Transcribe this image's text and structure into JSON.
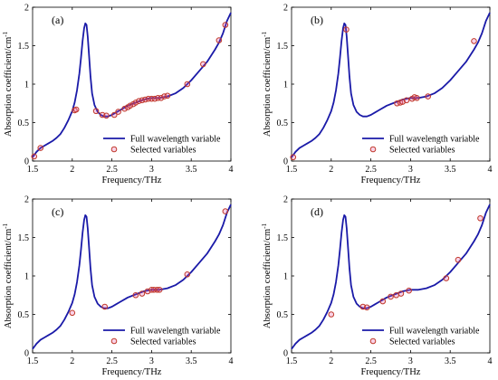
{
  "chart_data": [
    {
      "type": "line",
      "panel_label": "(a)",
      "xlabel": "Frequency/THz",
      "ylabel": "Absorption coefficient/cm",
      "ylabel_exponent": "-1",
      "xlim": [
        1.5,
        4
      ],
      "ylim": [
        0,
        2
      ],
      "x_ticks": [
        "1.5",
        "2",
        "2.5",
        "3",
        "3.5",
        "4"
      ],
      "y_ticks": [
        "0",
        "0.5",
        "1",
        "1.5",
        "2"
      ],
      "grid": false,
      "legend_position": "bottom-right",
      "series": [
        {
          "name": "Full wavelength variable",
          "style": "line",
          "color": "#1a1aa8",
          "x": [
            1.5,
            1.55,
            1.6,
            1.65,
            1.7,
            1.75,
            1.8,
            1.85,
            1.9,
            1.95,
            2.0,
            2.03,
            2.06,
            2.09,
            2.11,
            2.13,
            2.15,
            2.165,
            2.18,
            2.195,
            2.21,
            2.23,
            2.25,
            2.28,
            2.32,
            2.36,
            2.4,
            2.45,
            2.5,
            2.55,
            2.6,
            2.7,
            2.8,
            2.9,
            3.0,
            3.05,
            3.1,
            3.2,
            3.3,
            3.4,
            3.5,
            3.6,
            3.7,
            3.8,
            3.85,
            3.9,
            3.95,
            4.0
          ],
          "y": [
            0.05,
            0.12,
            0.17,
            0.2,
            0.23,
            0.26,
            0.3,
            0.35,
            0.43,
            0.53,
            0.65,
            0.76,
            0.92,
            1.14,
            1.34,
            1.56,
            1.73,
            1.79,
            1.77,
            1.62,
            1.4,
            1.1,
            0.88,
            0.73,
            0.64,
            0.6,
            0.58,
            0.58,
            0.6,
            0.63,
            0.66,
            0.72,
            0.76,
            0.8,
            0.82,
            0.82,
            0.82,
            0.84,
            0.88,
            0.95,
            1.05,
            1.17,
            1.29,
            1.45,
            1.54,
            1.66,
            1.82,
            1.93
          ]
        },
        {
          "name": "Selected variables",
          "style": "marker",
          "color": "#c0392b",
          "x": [
            1.52,
            1.6,
            2.03,
            2.05,
            2.3,
            2.38,
            2.43,
            2.53,
            2.58,
            2.66,
            2.7,
            2.73,
            2.77,
            2.8,
            2.84,
            2.88,
            2.92,
            2.96,
            3.0,
            3.04,
            3.08,
            3.12,
            3.16,
            3.2,
            3.45,
            3.65,
            3.85,
            3.93
          ],
          "y": [
            0.06,
            0.17,
            0.66,
            0.67,
            0.65,
            0.6,
            0.59,
            0.6,
            0.64,
            0.68,
            0.7,
            0.72,
            0.74,
            0.76,
            0.78,
            0.79,
            0.8,
            0.81,
            0.81,
            0.81,
            0.82,
            0.82,
            0.84,
            0.85,
            1.0,
            1.26,
            1.57,
            1.77
          ]
        }
      ]
    },
    {
      "type": "line",
      "panel_label": "(b)",
      "xlabel": "Frequency/THz",
      "ylabel": "Absorption coefficient/cm",
      "ylabel_exponent": "-1",
      "xlim": [
        1.5,
        4
      ],
      "ylim": [
        0,
        2
      ],
      "x_ticks": [
        "1.5",
        "2",
        "2.5",
        "3",
        "3.5",
        "4"
      ],
      "y_ticks": [
        "0",
        "0.5",
        "1",
        "1.5",
        "2"
      ],
      "grid": false,
      "legend_position": "bottom-right",
      "series": [
        {
          "name": "Full wavelength variable",
          "style": "line",
          "color": "#1a1aa8",
          "x": [
            1.5,
            1.55,
            1.6,
            1.65,
            1.7,
            1.75,
            1.8,
            1.85,
            1.9,
            1.95,
            2.0,
            2.03,
            2.06,
            2.09,
            2.11,
            2.13,
            2.15,
            2.165,
            2.18,
            2.195,
            2.21,
            2.23,
            2.25,
            2.28,
            2.32,
            2.36,
            2.4,
            2.45,
            2.5,
            2.55,
            2.6,
            2.7,
            2.8,
            2.9,
            3.0,
            3.05,
            3.1,
            3.2,
            3.3,
            3.4,
            3.5,
            3.6,
            3.7,
            3.8,
            3.85,
            3.9,
            3.95,
            4.0
          ],
          "y": [
            0.05,
            0.12,
            0.17,
            0.2,
            0.23,
            0.26,
            0.3,
            0.35,
            0.43,
            0.53,
            0.65,
            0.76,
            0.92,
            1.14,
            1.34,
            1.56,
            1.73,
            1.79,
            1.77,
            1.62,
            1.4,
            1.1,
            0.88,
            0.73,
            0.64,
            0.6,
            0.58,
            0.58,
            0.6,
            0.63,
            0.66,
            0.72,
            0.76,
            0.8,
            0.82,
            0.82,
            0.82,
            0.84,
            0.88,
            0.95,
            1.05,
            1.17,
            1.29,
            1.45,
            1.54,
            1.66,
            1.82,
            1.93
          ]
        },
        {
          "name": "Selected variables",
          "style": "marker",
          "color": "#c0392b",
          "x": [
            1.52,
            2.19,
            2.83,
            2.87,
            2.9,
            2.95,
            3.02,
            3.05,
            3.08,
            3.22,
            3.8
          ],
          "y": [
            0.05,
            1.71,
            0.75,
            0.76,
            0.77,
            0.79,
            0.81,
            0.83,
            0.82,
            0.84,
            1.56
          ]
        }
      ]
    },
    {
      "type": "line",
      "panel_label": "(c)",
      "xlabel": "Frequency/THz",
      "ylabel": "Absorption coefficient/cm",
      "ylabel_exponent": "-1",
      "xlim": [
        1.5,
        4
      ],
      "ylim": [
        0,
        2
      ],
      "x_ticks": [
        "1.5",
        "2",
        "2.5",
        "3",
        "3.5",
        "4"
      ],
      "y_ticks": [
        "0",
        "0.5",
        "1",
        "1.5",
        "2"
      ],
      "grid": false,
      "legend_position": "bottom-right",
      "series": [
        {
          "name": "Full wavelength variable",
          "style": "line",
          "color": "#1a1aa8",
          "x": [
            1.5,
            1.55,
            1.6,
            1.65,
            1.7,
            1.75,
            1.8,
            1.85,
            1.9,
            1.95,
            2.0,
            2.03,
            2.06,
            2.09,
            2.11,
            2.13,
            2.15,
            2.165,
            2.18,
            2.195,
            2.21,
            2.23,
            2.25,
            2.28,
            2.32,
            2.36,
            2.4,
            2.45,
            2.5,
            2.55,
            2.6,
            2.7,
            2.8,
            2.9,
            3.0,
            3.05,
            3.1,
            3.2,
            3.3,
            3.4,
            3.5,
            3.6,
            3.7,
            3.8,
            3.85,
            3.9,
            3.95,
            4.0
          ],
          "y": [
            0.05,
            0.12,
            0.17,
            0.2,
            0.23,
            0.26,
            0.3,
            0.35,
            0.43,
            0.53,
            0.65,
            0.76,
            0.92,
            1.14,
            1.34,
            1.56,
            1.73,
            1.79,
            1.77,
            1.62,
            1.4,
            1.1,
            0.88,
            0.73,
            0.64,
            0.6,
            0.58,
            0.58,
            0.6,
            0.63,
            0.66,
            0.72,
            0.76,
            0.8,
            0.82,
            0.82,
            0.82,
            0.84,
            0.88,
            0.95,
            1.05,
            1.17,
            1.29,
            1.45,
            1.54,
            1.66,
            1.82,
            1.93
          ]
        },
        {
          "name": "Selected variables",
          "style": "marker",
          "color": "#c0392b",
          "x": [
            2.0,
            2.41,
            2.8,
            2.88,
            2.95,
            3.0,
            3.03,
            3.07,
            3.1,
            3.45,
            3.93
          ],
          "y": [
            0.52,
            0.6,
            0.75,
            0.77,
            0.8,
            0.82,
            0.82,
            0.82,
            0.82,
            1.02,
            1.84
          ]
        }
      ]
    },
    {
      "type": "line",
      "panel_label": "(d)",
      "xlabel": "Frequency/THz",
      "ylabel": "Absorption coefficient/cm",
      "ylabel_exponent": "-1",
      "xlim": [
        1.5,
        4
      ],
      "ylim": [
        0,
        2
      ],
      "x_ticks": [
        "1.5",
        "2",
        "2.5",
        "3",
        "3.5",
        "4"
      ],
      "y_ticks": [
        "0",
        "0.5",
        "1",
        "1.5",
        "2"
      ],
      "grid": false,
      "legend_position": "bottom-right",
      "series": [
        {
          "name": "Full wavelength variable",
          "style": "line",
          "color": "#1a1aa8",
          "x": [
            1.5,
            1.55,
            1.6,
            1.65,
            1.7,
            1.75,
            1.8,
            1.85,
            1.9,
            1.95,
            2.0,
            2.03,
            2.06,
            2.09,
            2.11,
            2.13,
            2.15,
            2.165,
            2.18,
            2.195,
            2.21,
            2.23,
            2.25,
            2.28,
            2.32,
            2.36,
            2.4,
            2.45,
            2.5,
            2.55,
            2.6,
            2.7,
            2.8,
            2.9,
            3.0,
            3.05,
            3.1,
            3.2,
            3.3,
            3.4,
            3.5,
            3.6,
            3.7,
            3.8,
            3.85,
            3.9,
            3.95,
            4.0
          ],
          "y": [
            0.05,
            0.12,
            0.17,
            0.2,
            0.23,
            0.26,
            0.3,
            0.35,
            0.43,
            0.53,
            0.65,
            0.76,
            0.92,
            1.14,
            1.34,
            1.56,
            1.73,
            1.79,
            1.77,
            1.62,
            1.4,
            1.1,
            0.88,
            0.73,
            0.64,
            0.6,
            0.58,
            0.58,
            0.6,
            0.63,
            0.66,
            0.72,
            0.76,
            0.8,
            0.82,
            0.82,
            0.82,
            0.84,
            0.88,
            0.95,
            1.05,
            1.17,
            1.29,
            1.45,
            1.54,
            1.66,
            1.82,
            1.93
          ]
        },
        {
          "name": "Selected variables",
          "style": "marker",
          "color": "#c0392b",
          "x": [
            2.0,
            2.4,
            2.45,
            2.65,
            2.75,
            2.82,
            2.88,
            2.98,
            3.45,
            3.6,
            3.88
          ],
          "y": [
            0.5,
            0.6,
            0.59,
            0.67,
            0.73,
            0.75,
            0.77,
            0.81,
            0.97,
            1.21,
            1.75
          ]
        }
      ]
    }
  ]
}
